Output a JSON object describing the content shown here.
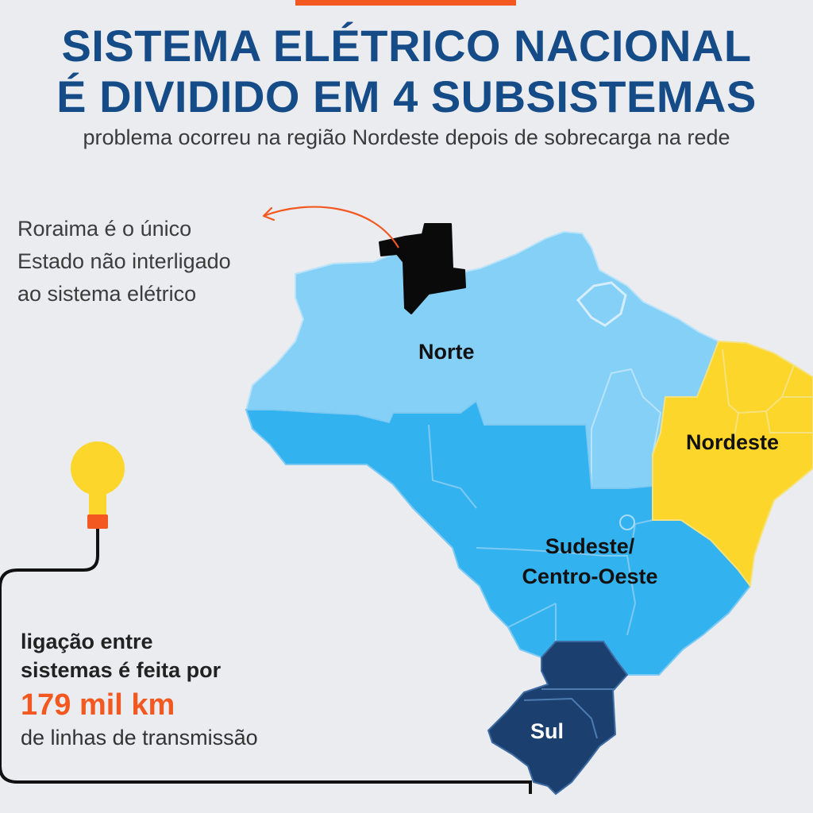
{
  "header": {
    "title_line1": "SISTEMA ELÉTRICO NACIONAL",
    "title_line2": "É DIVIDIDO EM 4 SUBSISTEMAS",
    "subtitle": "problema ocorreu na região Nordeste depois de sobrecarga na rede"
  },
  "annotation": {
    "roraima_line1": "Roraima é o único",
    "roraima_line2": "Estado não interligado",
    "roraima_line3": "ao sistema elétrico"
  },
  "regions": {
    "norte": "Norte",
    "nordeste": "Nordeste",
    "sudeste_line1": "Sudeste/",
    "sudeste_line2": "Centro-Oeste",
    "sul": "Sul"
  },
  "info": {
    "line1": "ligação entre",
    "line2": "sistemas é feita por",
    "number": "179 mil km",
    "line3": "de linhas de transmissão"
  },
  "colors": {
    "accent": "#f2581f",
    "title": "#154b87",
    "norte": "#84d0f7",
    "sudeste_centro_oeste": "#33b2f0",
    "nordeste": "#fcd62a",
    "sul": "#1b4070",
    "roraima": "#0a0a0a",
    "bulb": "#fcd62a"
  },
  "icons": [
    "light-bulb-icon",
    "curved-arrow-icon"
  ]
}
